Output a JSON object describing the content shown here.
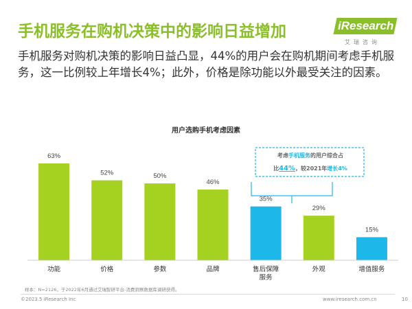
{
  "slide": {
    "title": "手机服务在购机决策中的影响日益增加",
    "intro": "手机服务对购机决策的影响日益凸显，44%的用户会在购机期间考虑手机服务，这一比例较上年增长4%；此外，价格是除功能以外最受关注的因素。",
    "logo": {
      "name": "iResearch",
      "sub": "艾瑞咨询"
    },
    "callout": {
      "prefix": "考虑",
      "highlight1": "手机服务",
      "mid": "的用户综合占",
      "line2_prefix": "比",
      "pct": "44%",
      "line2_mid": "，较2021年",
      "increase": "增长4%"
    },
    "footnote": "样本：N=2126，于2022年6月通过艾瑞智研平台-消费洞察数据库调研获得。",
    "copyright": "©2023.5 iResearch Inc",
    "website": "www.iresearch.com.cn",
    "page_number": "10"
  },
  "chart_data": {
    "type": "bar",
    "title": "用户选购手机考虑因素",
    "categories": [
      "功能",
      "价格",
      "参数",
      "品牌",
      "售后保障服务",
      "外观",
      "增值服务"
    ],
    "category_lines": [
      [
        "功能"
      ],
      [
        "价格"
      ],
      [
        "参数"
      ],
      [
        "品牌"
      ],
      [
        "售后保障",
        "服务"
      ],
      [
        "外观"
      ],
      [
        "增值服务"
      ]
    ],
    "values": [
      63,
      52,
      50,
      46,
      35,
      29,
      15
    ],
    "value_labels": [
      "63%",
      "52%",
      "50%",
      "46%",
      "35%",
      "29%",
      "15%"
    ],
    "bar_colors": [
      "#a5d121",
      "#a5d121",
      "#a5d121",
      "#a5d121",
      "#1eb7ea",
      "#a5d121",
      "#1eb7ea"
    ],
    "ylim": [
      0,
      70
    ],
    "grid": false
  }
}
